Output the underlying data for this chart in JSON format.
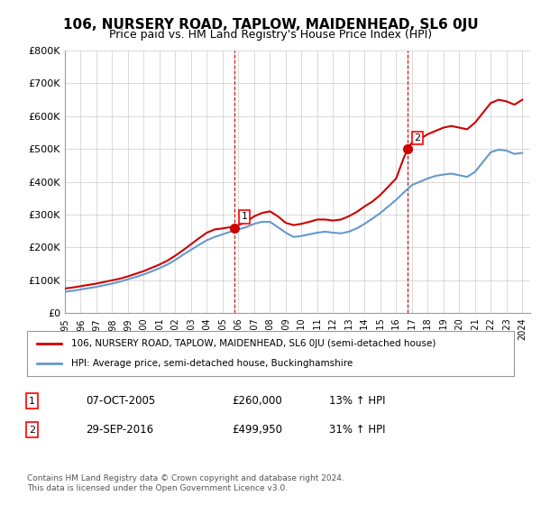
{
  "title": "106, NURSERY ROAD, TAPLOW, MAIDENHEAD, SL6 0JU",
  "subtitle": "Price paid vs. HM Land Registry's House Price Index (HPI)",
  "legend_line1": "106, NURSERY ROAD, TAPLOW, MAIDENHEAD, SL6 0JU (semi-detached house)",
  "legend_line2": "HPI: Average price, semi-detached house, Buckinghamshire",
  "footer": "Contains HM Land Registry data © Crown copyright and database right 2024.\nThis data is licensed under the Open Government Licence v3.0.",
  "sale1_label": "1",
  "sale1_date": "07-OCT-2005",
  "sale1_price": "£260,000",
  "sale1_hpi": "13% ↑ HPI",
  "sale1_x": 2005.77,
  "sale1_y": 260000,
  "sale2_label": "2",
  "sale2_date": "29-SEP-2016",
  "sale2_price": "£499,950",
  "sale2_hpi": "31% ↑ HPI",
  "sale2_x": 2016.75,
  "sale2_y": 499950,
  "line_color_red": "#cc0000",
  "line_color_blue": "#6699cc",
  "background_color": "#ffffff",
  "grid_color": "#cccccc",
  "ylim": [
    0,
    800000
  ],
  "xlim_start": 1995.0,
  "xlim_end": 2024.5,
  "yticks": [
    0,
    100000,
    200000,
    300000,
    400000,
    500000,
    600000,
    700000,
    800000
  ],
  "ytick_labels": [
    "£0",
    "£100K",
    "£200K",
    "£300K",
    "£400K",
    "£500K",
    "£600K",
    "£700K",
    "£800K"
  ],
  "xticks": [
    1995,
    1996,
    1997,
    1998,
    1999,
    2000,
    2001,
    2002,
    2003,
    2004,
    2005,
    2006,
    2007,
    2008,
    2009,
    2010,
    2011,
    2012,
    2013,
    2014,
    2015,
    2016,
    2017,
    2018,
    2019,
    2020,
    2021,
    2022,
    2023,
    2024
  ],
  "red_x": [
    1995.0,
    1995.5,
    1996.0,
    1996.5,
    1997.0,
    1997.5,
    1998.0,
    1998.5,
    1999.0,
    1999.5,
    2000.0,
    2000.5,
    2001.0,
    2001.5,
    2002.0,
    2002.5,
    2003.0,
    2003.5,
    2004.0,
    2004.5,
    2005.0,
    2005.5,
    2005.77,
    2006.0,
    2006.5,
    2007.0,
    2007.5,
    2008.0,
    2008.5,
    2009.0,
    2009.5,
    2010.0,
    2010.5,
    2011.0,
    2011.5,
    2012.0,
    2012.5,
    2013.0,
    2013.5,
    2014.0,
    2014.5,
    2015.0,
    2015.5,
    2016.0,
    2016.5,
    2016.75,
    2017.0,
    2017.5,
    2018.0,
    2018.5,
    2019.0,
    2019.5,
    2020.0,
    2020.5,
    2021.0,
    2021.5,
    2022.0,
    2022.5,
    2023.0,
    2023.5,
    2024.0
  ],
  "red_y": [
    75000,
    78000,
    82000,
    86000,
    90000,
    95000,
    100000,
    105000,
    112000,
    120000,
    128000,
    138000,
    148000,
    160000,
    175000,
    192000,
    210000,
    228000,
    245000,
    255000,
    258000,
    262000,
    260000,
    268000,
    278000,
    295000,
    305000,
    310000,
    295000,
    275000,
    268000,
    272000,
    278000,
    285000,
    285000,
    282000,
    285000,
    295000,
    308000,
    325000,
    340000,
    360000,
    385000,
    410000,
    475000,
    499950,
    520000,
    530000,
    545000,
    555000,
    565000,
    570000,
    565000,
    560000,
    580000,
    610000,
    640000,
    650000,
    645000,
    635000,
    650000
  ],
  "blue_x": [
    1995.0,
    1995.5,
    1996.0,
    1996.5,
    1997.0,
    1997.5,
    1998.0,
    1998.5,
    1999.0,
    1999.5,
    2000.0,
    2000.5,
    2001.0,
    2001.5,
    2002.0,
    2002.5,
    2003.0,
    2003.5,
    2004.0,
    2004.5,
    2005.0,
    2005.5,
    2006.0,
    2006.5,
    2007.0,
    2007.5,
    2008.0,
    2008.5,
    2009.0,
    2009.5,
    2010.0,
    2010.5,
    2011.0,
    2011.5,
    2012.0,
    2012.5,
    2013.0,
    2013.5,
    2014.0,
    2014.5,
    2015.0,
    2015.5,
    2016.0,
    2016.5,
    2017.0,
    2017.5,
    2018.0,
    2018.5,
    2019.0,
    2019.5,
    2020.0,
    2020.5,
    2021.0,
    2021.5,
    2022.0,
    2022.5,
    2023.0,
    2023.5,
    2024.0
  ],
  "blue_y": [
    65000,
    68000,
    72000,
    76000,
    80000,
    85000,
    90000,
    96000,
    103000,
    110000,
    118000,
    127000,
    137000,
    148000,
    162000,
    178000,
    193000,
    208000,
    222000,
    232000,
    240000,
    248000,
    255000,
    262000,
    272000,
    278000,
    278000,
    262000,
    245000,
    232000,
    235000,
    240000,
    245000,
    248000,
    245000,
    243000,
    248000,
    258000,
    272000,
    288000,
    305000,
    325000,
    345000,
    368000,
    390000,
    400000,
    410000,
    418000,
    422000,
    425000,
    420000,
    415000,
    430000,
    460000,
    490000,
    498000,
    495000,
    485000,
    488000
  ]
}
